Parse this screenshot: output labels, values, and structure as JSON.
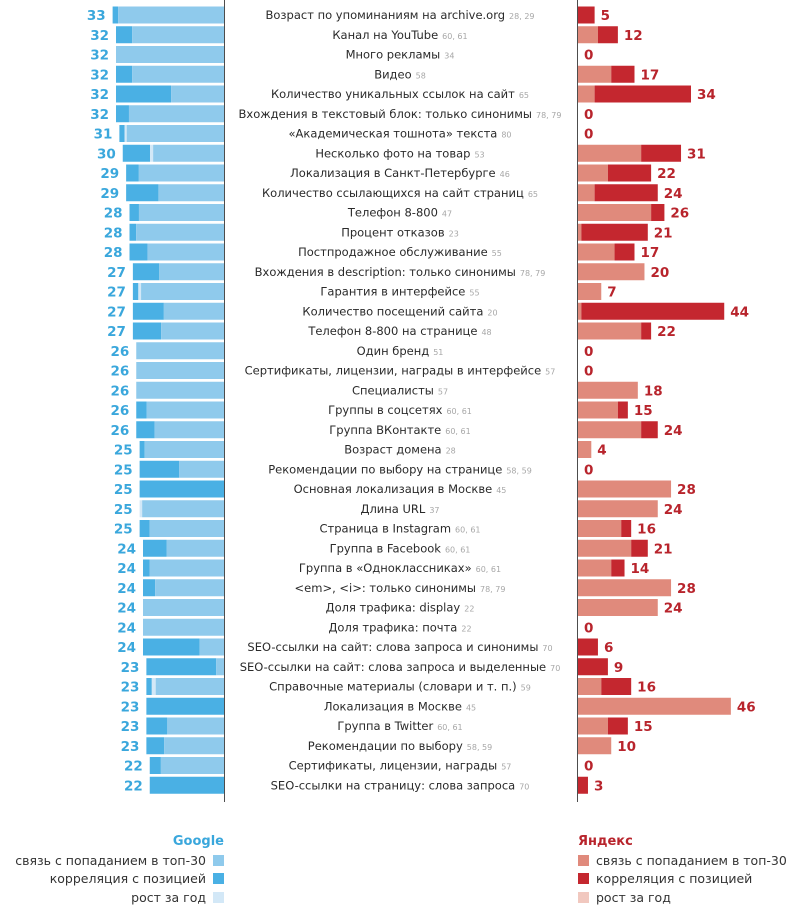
{
  "chart_data": {
    "type": "bar",
    "factors": [
      {
        "label": "Возраст по упоминаниям на archive.org",
        "refs": "28, 29",
        "google": 33,
        "yandex": 5
      },
      {
        "label": "Канал на YouTube",
        "refs": "60, 61",
        "google": 32,
        "yandex": 12
      },
      {
        "label": "Много рекламы",
        "refs": "34",
        "google": 32,
        "yandex": 0
      },
      {
        "label": "Видео",
        "refs": "58",
        "google": 32,
        "yandex": 17
      },
      {
        "label": "Количество уникальных ссылок на сайт",
        "refs": "65",
        "google": 32,
        "yandex": 34
      },
      {
        "label": "Вхождения в текстовый блок: только синонимы",
        "refs": "78, 79",
        "google": 32,
        "yandex": 0
      },
      {
        "label": "«Академическая тошнота» текста",
        "refs": "80",
        "google": 31,
        "yandex": 0
      },
      {
        "label": "Несколько фото на товар",
        "refs": "53",
        "google": 30,
        "yandex": 31
      },
      {
        "label": "Локализация в Санкт-Петербурге",
        "refs": "46",
        "google": 29,
        "yandex": 22
      },
      {
        "label": "Количество ссылающихся на сайт страниц",
        "refs": "65",
        "google": 29,
        "yandex": 24
      },
      {
        "label": "Телефон 8-800",
        "refs": "47",
        "google": 28,
        "yandex": 26
      },
      {
        "label": "Процент отказов",
        "refs": "23",
        "google": 28,
        "yandex": 21
      },
      {
        "label": "Постпродажное обслуживание",
        "refs": "55",
        "google": 28,
        "yandex": 17
      },
      {
        "label": "Вхождения в description: только синонимы",
        "refs": "78, 79",
        "google": 27,
        "yandex": 20
      },
      {
        "label": "Гарантия в интерфейсе",
        "refs": "55",
        "google": 27,
        "yandex": 7
      },
      {
        "label": "Количество посещений сайта",
        "refs": "20",
        "google": 27,
        "yandex": 44
      },
      {
        "label": "Телефон 8-800 на странице",
        "refs": "48",
        "google": 27,
        "yandex": 22
      },
      {
        "label": "Один бренд",
        "refs": "51",
        "google": 26,
        "yandex": 0
      },
      {
        "label": "Сертификаты, лицензии, награды в интерфейсе",
        "refs": "57",
        "google": 26,
        "yandex": 0
      },
      {
        "label": "Специалисты",
        "refs": "57",
        "google": 26,
        "yandex": 18
      },
      {
        "label": "Группы в соцсетях",
        "refs": "60, 61",
        "google": 26,
        "yandex": 15
      },
      {
        "label": "Группа ВКонтакте",
        "refs": "60, 61",
        "google": 26,
        "yandex": 24
      },
      {
        "label": "Возраст домена",
        "refs": "28",
        "google": 25,
        "yandex": 4
      },
      {
        "label": "Рекомендации по выбору на странице",
        "refs": "58, 59",
        "google": 25,
        "yandex": 0
      },
      {
        "label": "Основная локализация в Москве",
        "refs": "45",
        "google": 25,
        "yandex": 28
      },
      {
        "label": "Длина URL",
        "refs": "37",
        "google": 25,
        "yandex": 24
      },
      {
        "label": "Страница в Instagram",
        "refs": "60, 61",
        "google": 25,
        "yandex": 16
      },
      {
        "label": "Группа в Facebook",
        "refs": "60, 61",
        "google": 24,
        "yandex": 21
      },
      {
        "label": "Группа в «Одноклассниках»",
        "refs": "60, 61",
        "google": 24,
        "yandex": 14
      },
      {
        "label": "<em>, <i>: только синонимы",
        "refs": "78, 79",
        "google": 24,
        "yandex": 28
      },
      {
        "label": "Доля трафика: display",
        "refs": "22",
        "google": 24,
        "yandex": 24
      },
      {
        "label": "Доля трафика: почта",
        "refs": "22",
        "google": 24,
        "yandex": 0
      },
      {
        "label": "SEO-ссылки на сайт: слова запроса и синонимы",
        "refs": "70",
        "google": 24,
        "yandex": 6
      },
      {
        "label": "SEO-ссылки на сайт: слова запроса и выделенные",
        "refs": "70",
        "google": 23,
        "yandex": 9
      },
      {
        "label": "Справочные материалы (словари и т. п.)",
        "refs": "59",
        "google": 23,
        "yandex": 16
      },
      {
        "label": "Локализация в Москве",
        "refs": "45",
        "google": 23,
        "yandex": 46
      },
      {
        "label": "Группа в Twitter",
        "refs": "60, 61",
        "google": 23,
        "yandex": 15
      },
      {
        "label": "Рекомендации по выбору",
        "refs": "58, 59",
        "google": 23,
        "yandex": 10
      },
      {
        "label": "Сертификаты, лицензии, награды",
        "refs": "57",
        "google": 22,
        "yandex": 0
      },
      {
        "label": "SEO-ссылки на страницу: слова запроса",
        "refs": "70",
        "google": 22,
        "yandex": 3
      }
    ],
    "google_segments": [
      [
        0.05,
        0.0,
        0.95
      ],
      [
        0.15,
        0.0,
        0.85
      ],
      [
        0.0,
        0.0,
        1.0
      ],
      [
        0.15,
        0.0,
        0.85
      ],
      [
        0.51,
        0.0,
        0.49
      ],
      [
        0.12,
        0.0,
        0.88
      ],
      [
        0.05,
        0.02,
        0.93
      ],
      [
        0.27,
        0.03,
        0.7
      ],
      [
        0.13,
        0.0,
        0.87
      ],
      [
        0.33,
        0.0,
        0.67
      ],
      [
        0.1,
        0.0,
        0.9
      ],
      [
        0.07,
        0.0,
        0.93
      ],
      [
        0.19,
        0.0,
        0.81
      ],
      [
        0.29,
        0.0,
        0.71
      ],
      [
        0.06,
        0.03,
        0.91
      ],
      [
        0.34,
        0.0,
        0.66
      ],
      [
        0.31,
        0.0,
        0.69
      ],
      [
        0.0,
        0.0,
        1.0
      ],
      [
        0.0,
        0.0,
        1.0
      ],
      [
        0.0,
        0.0,
        1.0
      ],
      [
        0.12,
        0.0,
        0.88
      ],
      [
        0.21,
        0.0,
        0.79
      ],
      [
        0.06,
        0.0,
        0.94
      ],
      [
        0.47,
        0.0,
        0.53
      ],
      [
        1.0,
        0.0,
        0.0
      ],
      [
        0.0,
        0.03,
        0.97
      ],
      [
        0.12,
        0.0,
        0.88
      ],
      [
        0.29,
        0.0,
        0.71
      ],
      [
        0.08,
        0.0,
        0.92
      ],
      [
        0.15,
        0.0,
        0.85
      ],
      [
        0.0,
        0.0,
        1.0
      ],
      [
        0.0,
        0.0,
        1.0
      ],
      [
        0.7,
        0.0,
        0.3
      ],
      [
        0.9,
        0.0,
        0.1
      ],
      [
        0.07,
        0.05,
        0.88
      ],
      [
        1.0,
        0.0,
        0.0
      ],
      [
        0.27,
        0.0,
        0.73
      ],
      [
        0.23,
        0.0,
        0.77
      ],
      [
        0.15,
        0.0,
        0.85
      ],
      [
        1.0,
        0.0,
        0.0
      ]
    ],
    "yandex_segments": [
      [
        0,
        5,
        0
      ],
      [
        6,
        6,
        0
      ],
      [
        0,
        0,
        0
      ],
      [
        10,
        7,
        0
      ],
      [
        5,
        29,
        0
      ],
      [
        0,
        0,
        0
      ],
      [
        0,
        0,
        0
      ],
      [
        19,
        12,
        0
      ],
      [
        9,
        13,
        0
      ],
      [
        5,
        19,
        0
      ],
      [
        22,
        4,
        0
      ],
      [
        1,
        20,
        0
      ],
      [
        11,
        6,
        0
      ],
      [
        20,
        0,
        0
      ],
      [
        7,
        0,
        0
      ],
      [
        1,
        43,
        0
      ],
      [
        19,
        3,
        0
      ],
      [
        0,
        0,
        0
      ],
      [
        0,
        0,
        0
      ],
      [
        18,
        0,
        0
      ],
      [
        12,
        3,
        0
      ],
      [
        19,
        5,
        0
      ],
      [
        4,
        0,
        0
      ],
      [
        0,
        0,
        0
      ],
      [
        28,
        0,
        0
      ],
      [
        24,
        0,
        0
      ],
      [
        13,
        3,
        0
      ],
      [
        16,
        5,
        0
      ],
      [
        10,
        4,
        0
      ],
      [
        28,
        0,
        0
      ],
      [
        24,
        0,
        0
      ],
      [
        0,
        0,
        0
      ],
      [
        0,
        6,
        0
      ],
      [
        0,
        9,
        0
      ],
      [
        7,
        9,
        0
      ],
      [
        46,
        0,
        0
      ],
      [
        9,
        6,
        0
      ],
      [
        10,
        0,
        0
      ],
      [
        0,
        0,
        0
      ],
      [
        0,
        3,
        0
      ]
    ],
    "legend": {
      "google_title": "Google",
      "yandex_title": "Яндекс",
      "items": [
        "связь с попаданием в топ-30",
        "корреляция с позицией",
        "рост за год"
      ]
    },
    "colors": {
      "google_text": "#3aa7dc",
      "google_top30": "#8fcaec",
      "google_corr": "#4ab0e4",
      "google_growth": "#d3e8f7",
      "yandex_text": "#b8242c",
      "yandex_top30": "#e08a7c",
      "yandex_corr": "#c4272f",
      "yandex_growth": "#f1c8bf",
      "axis": "#4d4d4d"
    }
  }
}
